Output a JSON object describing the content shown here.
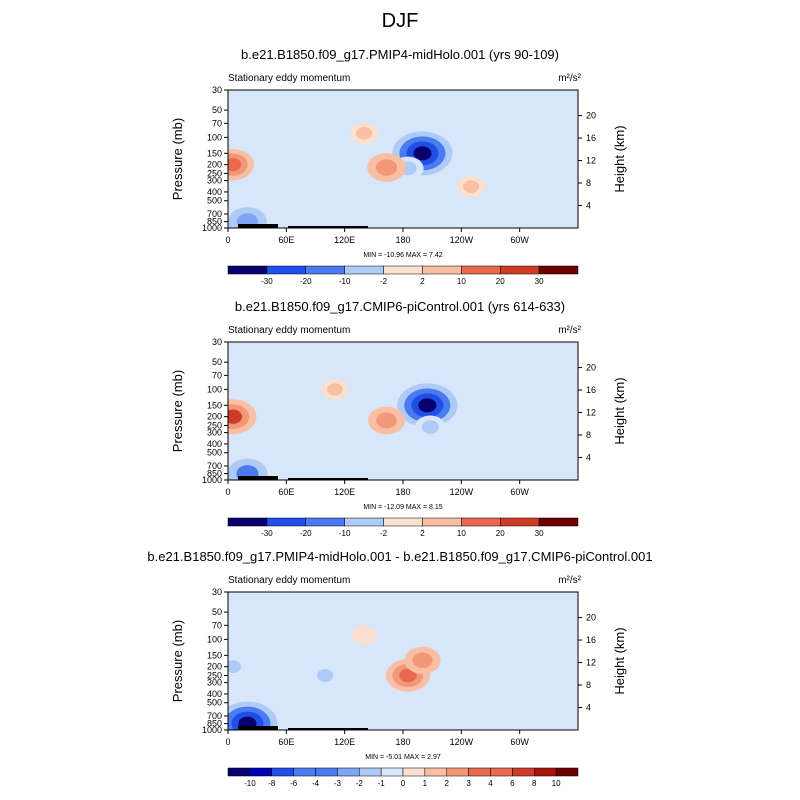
{
  "page_title": "DJF",
  "colors": {
    "scale": [
      "#08006e",
      "#0000b8",
      "#1f4fe6",
      "#4a7bf0",
      "#7da5f5",
      "#aecbf8",
      "#d8e6fb",
      "#fce0cf",
      "#f9bfa4",
      "#f39779",
      "#e8694d",
      "#d03b25",
      "#a8150c",
      "#6e0000"
    ]
  },
  "chart_data": [
    {
      "type": "heatmap",
      "title": "b.e21.B1850.f09_g17.PMIP4-midHolo.001 (yrs 90-109)",
      "subtitle_left": "Stationary eddy momentum",
      "units": "m²/s²",
      "ylabel": "Pressure (mb)",
      "ylabel_right": "Height (km)",
      "xticks": [
        "0",
        "60E",
        "120E",
        "180",
        "120W",
        "60W"
      ],
      "yticks": [
        "30",
        "50",
        "70",
        "100",
        "150",
        "200",
        "250",
        "300",
        "400",
        "500",
        "700",
        "850",
        "1000"
      ],
      "yticks_right": [
        "4",
        "8",
        "12",
        "16",
        "20"
      ],
      "stats": "MIN = -10.96  MAX =  7.42",
      "colorbar_labels": [
        "-30",
        "-20",
        "-10",
        "-2",
        "2",
        "10",
        "20",
        "30"
      ],
      "features": [
        {
          "lon": 200,
          "p": 150,
          "value": -10.96
        },
        {
          "lon": 185,
          "p": 220,
          "value": -3
        },
        {
          "lon": 163,
          "p": 215,
          "value": 5
        },
        {
          "lon": 5,
          "p": 200,
          "value": 6
        },
        {
          "lon": 140,
          "p": 90,
          "value": 2
        },
        {
          "lon": 20,
          "p": 850,
          "value": -5
        },
        {
          "lon": 250,
          "p": 350,
          "value": 2
        }
      ]
    },
    {
      "type": "heatmap",
      "title": "b.e21.B1850.f09_g17.CMIP6-piControl.001 (yrs 614-633)",
      "subtitle_left": "Stationary eddy momentum",
      "units": "m²/s²",
      "ylabel": "Pressure (mb)",
      "ylabel_right": "Height (km)",
      "xticks": [
        "0",
        "60E",
        "120E",
        "180",
        "120W",
        "60W"
      ],
      "yticks": [
        "30",
        "50",
        "70",
        "100",
        "150",
        "200",
        "250",
        "300",
        "400",
        "500",
        "700",
        "850",
        "1000"
      ],
      "yticks_right": [
        "4",
        "8",
        "12",
        "16",
        "20"
      ],
      "stats": "MIN = -12.09  MAX =  8.15",
      "colorbar_labels": [
        "-30",
        "-20",
        "-10",
        "-2",
        "2",
        "10",
        "20",
        "30"
      ],
      "features": [
        {
          "lon": 205,
          "p": 150,
          "value": -12.09
        },
        {
          "lon": 208,
          "p": 260,
          "value": -3
        },
        {
          "lon": 163,
          "p": 220,
          "value": 5
        },
        {
          "lon": 5,
          "p": 200,
          "value": 8.15
        },
        {
          "lon": 110,
          "p": 100,
          "value": 2
        },
        {
          "lon": 20,
          "p": 850,
          "value": -6
        }
      ]
    },
    {
      "type": "heatmap",
      "title": "b.e21.B1850.f09_g17.PMIP4-midHolo.001 - b.e21.B1850.f09_g17.CMIP6-piControl.001",
      "subtitle_left": "Stationary eddy momentum",
      "units": "m²/s²",
      "ylabel": "Pressure (mb)",
      "ylabel_right": "Height (km)",
      "xticks": [
        "0",
        "60E",
        "120E",
        "180",
        "120W",
        "60W"
      ],
      "yticks": [
        "30",
        "50",
        "70",
        "100",
        "150",
        "200",
        "250",
        "300",
        "400",
        "500",
        "700",
        "850",
        "1000"
      ],
      "yticks_right": [
        "4",
        "8",
        "12",
        "16",
        "20"
      ],
      "stats": "MIN = -5.01  MAX =  2.97",
      "colorbar_labels": [
        "-10",
        "-8",
        "-6",
        "-4",
        "-3",
        "-2",
        "-1",
        "0",
        "1",
        "2",
        "3",
        "4",
        "6",
        "8",
        "10"
      ],
      "features": [
        {
          "lon": 185,
          "p": 250,
          "value": 2.97
        },
        {
          "lon": 200,
          "p": 170,
          "value": 2
        },
        {
          "lon": 100,
          "p": 250,
          "value": -1
        },
        {
          "lon": 5,
          "p": 200,
          "value": -1
        },
        {
          "lon": 140,
          "p": 90,
          "value": 0.5
        },
        {
          "lon": 20,
          "p": 850,
          "value": -5.01
        }
      ]
    }
  ]
}
